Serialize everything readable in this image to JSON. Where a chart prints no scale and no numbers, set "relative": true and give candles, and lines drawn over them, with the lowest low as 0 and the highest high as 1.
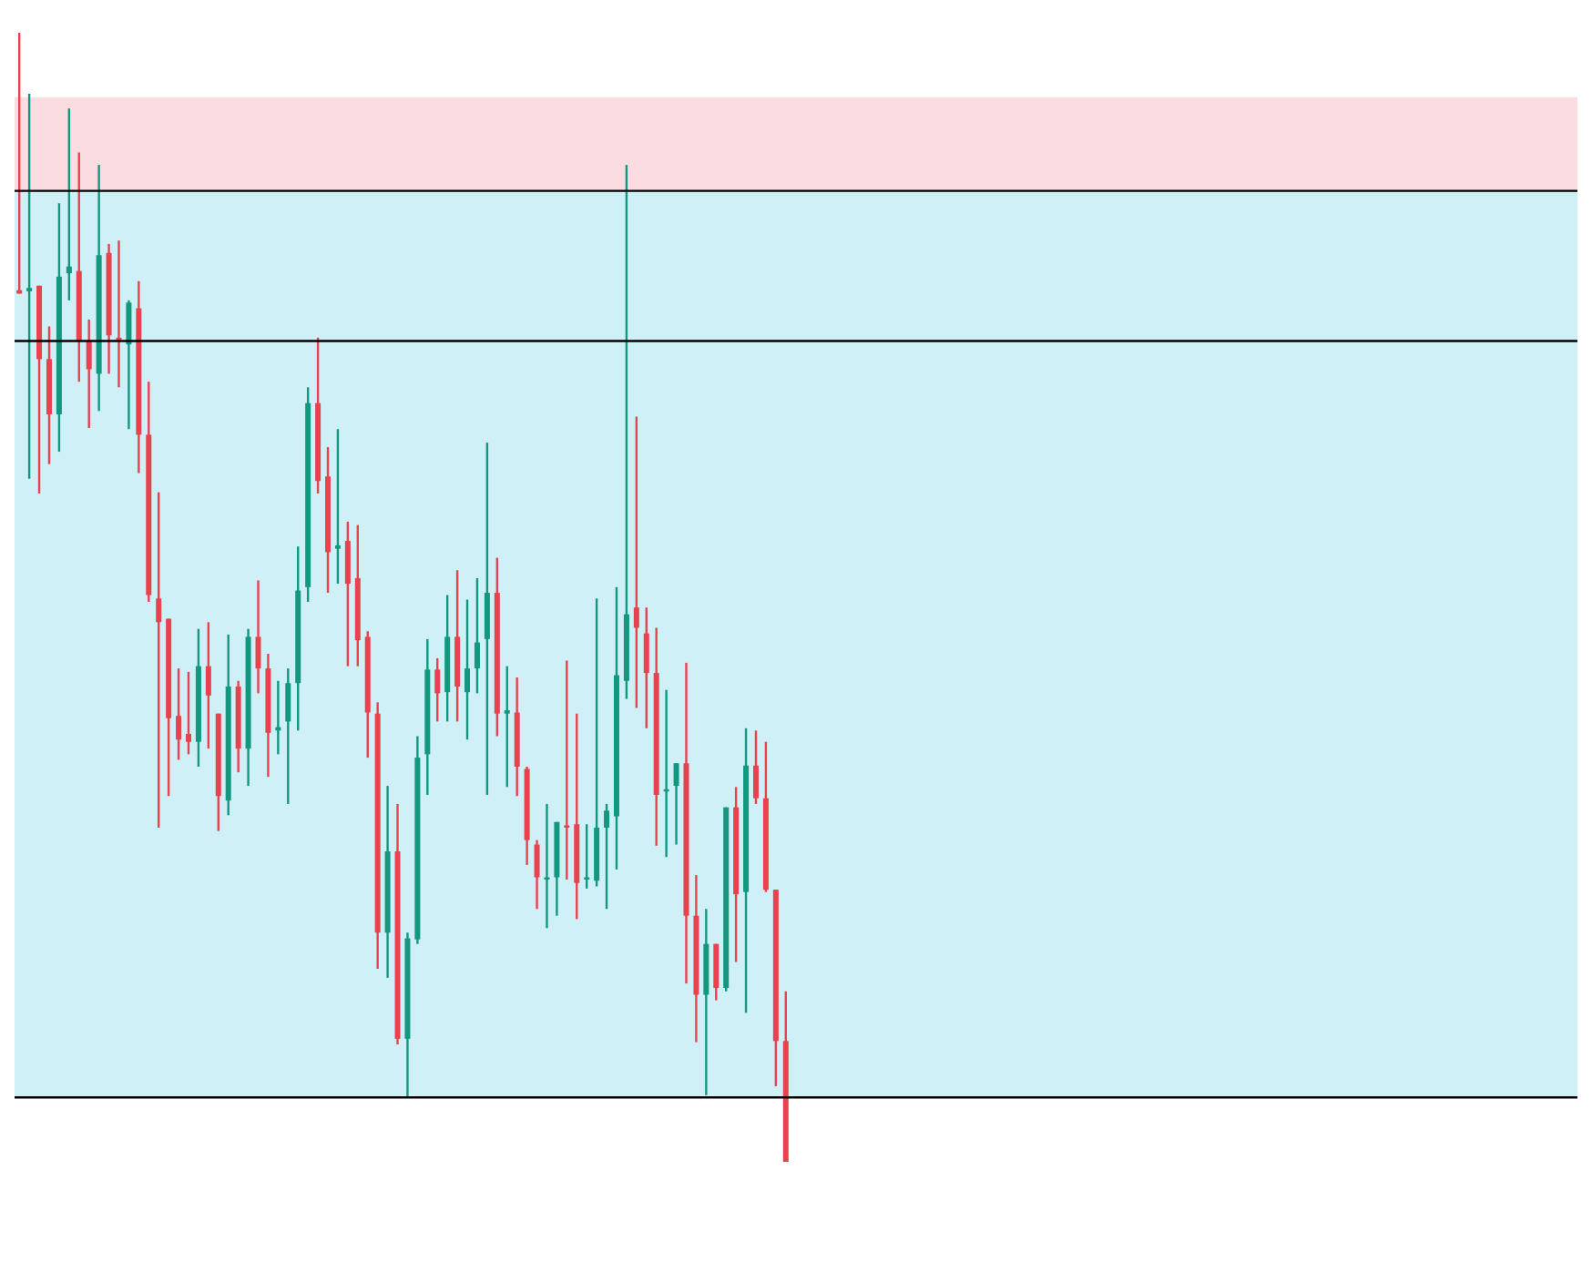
{
  "chart_data": {
    "type": "candlestick",
    "relative": true,
    "categories": [
      null,
      null,
      null,
      null,
      null,
      null,
      null,
      null,
      null,
      null,
      null,
      null,
      null,
      null,
      null,
      null,
      null,
      null,
      null,
      null,
      null,
      null,
      null,
      null,
      null,
      null,
      null,
      null,
      null,
      null,
      null,
      null,
      null,
      null,
      null,
      null,
      null,
      null,
      null,
      null,
      null,
      null,
      null,
      null,
      null,
      null,
      null,
      null,
      null,
      null,
      null,
      null,
      null,
      null,
      null,
      null,
      null,
      null,
      null,
      null,
      null,
      null,
      null,
      null,
      null,
      null,
      null,
      null,
      null,
      null,
      null,
      null,
      null,
      null,
      null,
      null,
      null,
      null,
      null,
      null,
      null,
      null,
      null,
      null,
      null,
      null,
      null,
      null,
      null,
      null,
      null,
      null,
      null,
      null,
      null,
      null,
      null,
      null,
      null,
      null,
      null,
      null,
      null,
      null,
      null,
      null,
      null,
      null,
      null,
      null,
      null,
      null,
      null,
      null,
      null,
      null,
      null,
      null,
      null,
      null,
      null,
      null,
      null,
      null,
      null,
      null,
      null,
      null,
      null,
      null,
      null,
      null,
      null,
      null,
      null,
      null,
      null,
      null,
      null,
      null,
      null,
      null,
      null,
      null,
      null,
      null,
      null,
      null,
      null,
      null,
      null,
      null,
      null,
      null,
      null,
      null,
      null
    ],
    "ohlc": [
      [
        0.772,
        1,
        0.769,
        0.769
      ],
      [
        0.771,
        0.946,
        0.605,
        0.774
      ],
      [
        0.776,
        0.776,
        0.592,
        0.711
      ],
      [
        0.711,
        0.74,
        0.618,
        0.662
      ],
      [
        0.662,
        0.849,
        0.629,
        0.784
      ],
      [
        0.787,
        0.933,
        0.763,
        0.793
      ],
      [
        0.789,
        0.894,
        0.691,
        0.727
      ],
      [
        0.727,
        0.746,
        0.65,
        0.702
      ],
      [
        0.698,
        0.883,
        0.665,
        0.803
      ],
      [
        0.805,
        0.813,
        0.698,
        0.732
      ],
      [
        0.73,
        0.816,
        0.686,
        0.728
      ],
      [
        0.724,
        0.763,
        0.649,
        0.761
      ],
      [
        0.756,
        0.78,
        0.61,
        0.644
      ],
      [
        0.644,
        0.691,
        0.496,
        0.502
      ],
      [
        0.499,
        0.593,
        0.296,
        0.478
      ],
      [
        0.481,
        0.481,
        0.324,
        0.393
      ],
      [
        0.395,
        0.437,
        0.356,
        0.374
      ],
      [
        0.379,
        0.434,
        0.361,
        0.372
      ],
      [
        0.372,
        0.472,
        0.35,
        0.439
      ],
      [
        0.439,
        0.478,
        0.366,
        0.413
      ],
      [
        0.397,
        0.397,
        0.293,
        0.324
      ],
      [
        0.32,
        0.467,
        0.307,
        0.421
      ],
      [
        0.421,
        0.426,
        0.345,
        0.366
      ],
      [
        0.366,
        0.472,
        0.333,
        0.465
      ],
      [
        0.465,
        0.515,
        0.415,
        0.437
      ],
      [
        0.437,
        0.45,
        0.341,
        0.38
      ],
      [
        0.382,
        0.426,
        0.361,
        0.385
      ],
      [
        0.39,
        0.437,
        0.317,
        0.424
      ],
      [
        0.424,
        0.545,
        0.382,
        0.506
      ],
      [
        0.509,
        0.686,
        0.496,
        0.672
      ],
      [
        0.672,
        0.73,
        0.592,
        0.603
      ],
      [
        0.607,
        0.633,
        0.504,
        0.54
      ],
      [
        0.543,
        0.649,
        0.512,
        0.546
      ],
      [
        0.55,
        0.567,
        0.439,
        0.512
      ],
      [
        0.517,
        0.564,
        0.439,
        0.462
      ],
      [
        0.465,
        0.47,
        0.358,
        0.398
      ],
      [
        0.397,
        0.407,
        0.171,
        0.203
      ],
      [
        0.203,
        0.333,
        0.163,
        0.275
      ],
      [
        0.275,
        0.317,
        0.104,
        0.109
      ],
      [
        0.109,
        0.203,
        0.057,
        0.198
      ],
      [
        0.197,
        0.377,
        0.193,
        0.358
      ],
      [
        0.361,
        0.463,
        0.325,
        0.436
      ],
      [
        0.436,
        0.446,
        0.39,
        0.415
      ],
      [
        0.416,
        0.502,
        0.39,
        0.465
      ],
      [
        0.465,
        0.524,
        0.39,
        0.421
      ],
      [
        0.416,
        0.498,
        0.374,
        0.437
      ],
      [
        0.437,
        0.517,
        0.415,
        0.46
      ],
      [
        0.463,
        0.637,
        0.325,
        0.504
      ],
      [
        0.504,
        0.535,
        0.377,
        0.397
      ],
      [
        0.397,
        0.439,
        0.332,
        0.4
      ],
      [
        0.398,
        0.429,
        0.324,
        0.35
      ],
      [
        0.348,
        0.35,
        0.263,
        0.285
      ],
      [
        0.281,
        0.285,
        0.224,
        0.252
      ],
      [
        0.25,
        0.317,
        0.207,
        0.252
      ],
      [
        0.252,
        0.301,
        0.218,
        0.301
      ],
      [
        0.298,
        0.444,
        0.25,
        0.296
      ],
      [
        0.299,
        0.397,
        0.215,
        0.247
      ],
      [
        0.25,
        0.299,
        0.242,
        0.252
      ],
      [
        0.249,
        0.499,
        0.244,
        0.296
      ],
      [
        0.296,
        0.317,
        0.224,
        0.311
      ],
      [
        0.306,
        0.509,
        0.259,
        0.431
      ],
      [
        0.426,
        0.883,
        0.41,
        0.485
      ],
      [
        0.491,
        0.66,
        0.402,
        0.473
      ],
      [
        0.468,
        0.491,
        0.384,
        0.433
      ],
      [
        0.433,
        0.473,
        0.28,
        0.325
      ],
      [
        0.328,
        0.418,
        0.27,
        0.33
      ],
      [
        0.333,
        0.353,
        0.281,
        0.353
      ],
      [
        0.353,
        0.442,
        0.158,
        0.218
      ],
      [
        0.218,
        0.254,
        0.106,
        0.148
      ],
      [
        0.148,
        0.224,
        0.059,
        0.193
      ],
      [
        0.193,
        0.193,
        0.143,
        0.154
      ],
      [
        0.154,
        0.314,
        0.151,
        0.314
      ],
      [
        0.314,
        0.332,
        0.177,
        0.237
      ],
      [
        0.239,
        0.384,
        0.132,
        0.351
      ],
      [
        0.351,
        0.382,
        0.317,
        0.322
      ],
      [
        0.322,
        0.372,
        0.239,
        0.241
      ],
      [
        0.241,
        0.241,
        0.067,
        0.107
      ],
      [
        0.107,
        0.151,
        0,
        0
      ],
      null,
      null,
      null,
      null,
      null,
      null,
      null,
      null,
      null,
      null,
      null,
      null,
      null,
      null,
      null,
      null,
      null,
      null,
      null,
      null,
      null,
      null,
      null,
      null,
      null,
      null,
      null,
      null,
      null,
      null,
      null,
      null,
      null,
      null,
      null,
      null,
      null,
      null,
      null,
      null,
      null,
      null,
      null,
      null,
      null,
      null,
      null,
      null,
      null,
      null,
      null,
      null,
      null,
      null,
      null,
      null,
      null,
      null,
      null,
      null,
      null,
      null,
      null,
      null,
      null,
      null,
      null,
      null,
      null,
      null,
      null,
      null,
      null,
      null,
      null,
      null,
      null,
      null,
      null
    ],
    "colors": [
      "#e8424f",
      "#13987f",
      "#e8424f",
      "#e8424f",
      "#13987f",
      "#13987f",
      "#e8424f",
      "#e8424f",
      "#13987f",
      "#e8424f",
      "#e8424f",
      "#13987f",
      "#e8424f",
      "#e8424f",
      "#e8424f",
      "#e8424f",
      "#e8424f",
      "#e8424f",
      "#13987f",
      "#e8424f",
      "#e8424f",
      "#13987f",
      "#e8424f",
      "#13987f",
      "#e8424f",
      "#e8424f",
      "#13987f",
      "#13987f",
      "#13987f",
      "#13987f",
      "#e8424f",
      "#e8424f",
      "#13987f",
      "#e8424f",
      "#e8424f",
      "#e8424f",
      "#e8424f",
      "#13987f",
      "#e8424f",
      "#13987f",
      "#13987f",
      "#13987f",
      "#e8424f",
      "#13987f",
      "#e8424f",
      "#13987f",
      "#13987f",
      "#13987f",
      "#e8424f",
      "#13987f",
      "#e8424f",
      "#e8424f",
      "#e8424f",
      "#13987f",
      "#13987f",
      "#e8424f",
      "#e8424f",
      "#13987f",
      "#13987f",
      "#13987f",
      "#13987f",
      "#13987f",
      "#e8424f",
      "#e8424f",
      "#e8424f",
      "#13987f",
      "#13987f",
      "#e8424f",
      "#e8424f",
      "#13987f",
      "#e8424f",
      "#13987f",
      "#e8424f",
      "#13987f",
      "#e8424f",
      "#e8424f",
      "#e8424f",
      "#e8424f",
      null,
      null,
      null,
      null,
      null,
      null,
      null,
      null,
      null,
      null,
      null,
      null,
      null,
      null,
      null,
      null,
      null,
      null,
      null,
      null,
      null,
      null,
      null,
      null,
      null,
      null,
      null,
      null,
      null,
      null,
      null,
      null,
      null,
      null,
      null,
      null,
      null,
      null,
      null,
      null,
      null,
      null,
      null,
      null,
      null,
      null,
      null,
      null,
      null,
      null,
      null,
      null,
      null,
      null,
      null,
      null,
      null,
      null,
      null,
      null,
      null,
      null,
      null,
      null,
      null,
      null,
      null,
      null,
      null,
      null,
      null,
      null,
      null,
      null,
      null,
      null,
      null,
      null,
      null
    ],
    "ref_lines": [
      {
        "axis": "y",
        "value": 0.86,
        "color": "#000000"
      },
      {
        "axis": "y",
        "value": 0.727,
        "color": "#000000"
      },
      {
        "axis": "y",
        "value": 0.057,
        "color": "#000000"
      }
    ],
    "bands": [
      {
        "axis": "y",
        "from": 0.86,
        "to": 0.943,
        "color": "#f8c0c8"
      },
      {
        "axis": "y",
        "from": 0.057,
        "to": 0.86,
        "color": "#a8e4f0"
      }
    ]
  }
}
